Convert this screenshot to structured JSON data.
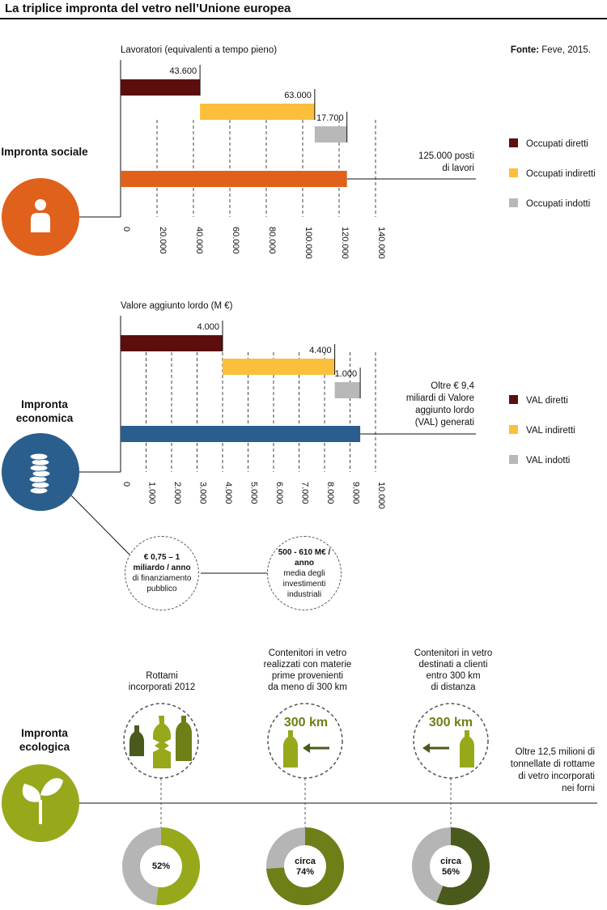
{
  "title": "La triplice impronta del vetro nell’Unione europea",
  "source": {
    "label": "Fonte:",
    "text": " Feve, 2015."
  },
  "colors": {
    "dark_red": "#5c0e0e",
    "yellow": "#fbbf3c",
    "gray": "#b8b8b8",
    "orange": "#e0611b",
    "blue": "#2a5e8c",
    "green": "#97a81b",
    "olive": "#6d7f16",
    "dark_olive": "#4a5a1c",
    "donut_gray": "#b5b5b5"
  },
  "sections": {
    "sociale": {
      "title": "Impronta sociale",
      "icon": "person-icon"
    },
    "economica": {
      "title": "Impronta economica",
      "icon": "coins-icon"
    },
    "ecologica": {
      "title": "Impronta ecologica",
      "icon": "leaves-icon"
    }
  },
  "chart_data": [
    {
      "type": "bar",
      "subtype": "waterfall",
      "title": "Lavoratori (equivalenti a tempo pieno)",
      "xlim": [
        0,
        140000
      ],
      "ticks": [
        "0",
        "20.000",
        "40.000",
        "60.000",
        "80.000",
        "100.000",
        "120.000",
        "140.000"
      ],
      "tick_values": [
        0,
        20000,
        40000,
        60000,
        80000,
        100000,
        120000,
        140000
      ],
      "series": [
        {
          "name": "Occupati diretti",
          "value": 43600,
          "label": "43.600",
          "color": "#5c0e0e"
        },
        {
          "name": "Occupati indiretti",
          "value": 63000,
          "label": "63.000",
          "color": "#fbbf3c"
        },
        {
          "name": "Occupati indotti",
          "value": 17700,
          "label": "17.700",
          "color": "#b8b8b8"
        }
      ],
      "total": {
        "value": 124300,
        "color": "#e0611b"
      },
      "total_note": [
        "125.000 posti",
        "di lavori"
      ],
      "legend": [
        "Occupati diretti",
        "Occupati indiretti",
        "Occupati indotti"
      ]
    },
    {
      "type": "bar",
      "subtype": "waterfall",
      "title": "Valore aggiunto lordo (M €)",
      "xlim": [
        0,
        10000
      ],
      "ticks": [
        "0",
        "1.000",
        "2.000",
        "3.000",
        "4.000",
        "5.000",
        "6.000",
        "7.000",
        "8.000",
        "9.000",
        "10.000"
      ],
      "tick_values": [
        0,
        1000,
        2000,
        3000,
        4000,
        5000,
        6000,
        7000,
        8000,
        9000,
        10000
      ],
      "series": [
        {
          "name": "VAL diretti",
          "value": 4000,
          "label": "4.000",
          "color": "#5c0e0e"
        },
        {
          "name": "VAL indiretti",
          "value": 4400,
          "label": "4.400",
          "color": "#fbbf3c"
        },
        {
          "name": "VAL indotti",
          "value": 1000,
          "label": "1.000",
          "color": "#b8b8b8"
        }
      ],
      "total": {
        "value": 9400,
        "color": "#2a5e8c"
      },
      "total_note": [
        "Oltre € 9,4",
        "miliardi di Valore",
        "aggiunto lordo",
        "(VAL) generati"
      ],
      "legend": [
        "VAL diretti",
        "VAL indiretti",
        "VAL indotti"
      ]
    },
    {
      "type": "pie",
      "subtype": "donut",
      "items": [
        {
          "caption": [
            "Rottami",
            "incorporati 2012"
          ],
          "value": 52,
          "label": "52%",
          "color": "#97a81b"
        },
        {
          "caption": [
            "Contenitori in vetro",
            "realizzati con materie",
            "prime provenienti",
            "da meno di 300 km"
          ],
          "value": 74,
          "label": "circa 74%",
          "label_lines": [
            "circa",
            "74%"
          ],
          "color": "#6d7f16",
          "badge": "300 km"
        },
        {
          "caption": [
            "Contenitori in vetro",
            "destinati a clienti",
            "entro 300 km",
            "di distanza"
          ],
          "value": 56,
          "label": "circa 56%",
          "label_lines": [
            "circa",
            "56%"
          ],
          "color": "#4a5a1c",
          "badge": "300 km"
        }
      ]
    }
  ],
  "economic_notes": {
    "public": {
      "bold": "€ 0,75 – 1 miliardo / anno",
      "text": "di finanziamento pubblico"
    },
    "investment": {
      "bold": "500 - 610 M€ / anno",
      "text": "media degli investimenti industriali"
    }
  },
  "ecological_note": [
    "Oltre 12,5 milioni di",
    "tonnellate di rottame",
    "di vetro incorporati",
    "nei forni"
  ]
}
